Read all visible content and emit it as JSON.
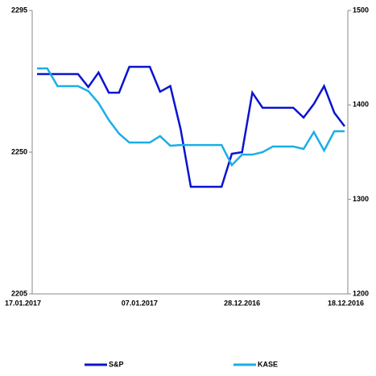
{
  "chart_data": {
    "type": "line",
    "categories": [
      "17.01.2017",
      null,
      null,
      null,
      null,
      null,
      null,
      null,
      null,
      null,
      "07.01.2017",
      null,
      null,
      null,
      null,
      null,
      null,
      null,
      null,
      null,
      "28.12.2016",
      null,
      null,
      null,
      null,
      null,
      null,
      null,
      null,
      null,
      "18.12.2016"
    ],
    "series": [
      {
        "name": "S&P",
        "color": "#0a14d0",
        "values": [
          2274.8,
          2274.8,
          2274.8,
          2274.8,
          2274.8,
          2270.7,
          2275.3,
          2268.9,
          2268.9,
          2277.1,
          2277.1,
          2277.1,
          2269.2,
          2271.0,
          2257.4,
          2239.0,
          2239.0,
          2239.0,
          2239.0,
          2249.5,
          2250.0,
          2268.9,
          2264.1,
          2264.1,
          2264.1,
          2264.1,
          2261.0,
          2265.3,
          2271.0,
          2262.5,
          2258.2
        ]
      },
      {
        "name": "KASE",
        "color": "#1aaee6",
        "axis": "y2",
        "values": [
          1438.6,
          1438.6,
          1419.9,
          1419.9,
          1419.9,
          1414.7,
          1402.0,
          1384.1,
          1369.6,
          1360.2,
          1360.2,
          1360.2,
          1367.0,
          1356.8,
          1357.6,
          1357.6,
          1357.6,
          1357.6,
          1357.6,
          1336.3,
          1347.4,
          1347.4,
          1350.0,
          1356.0,
          1356.0,
          1356.0,
          1353.4,
          1371.3,
          1351.7,
          1372.2,
          1372.2
        ]
      }
    ],
    "ylim": [
      2205,
      2295
    ],
    "yticks": [
      2205,
      2250,
      2295
    ],
    "y2lim": [
      1200,
      1500
    ],
    "y2ticks": [
      1200,
      1300,
      1400,
      1500
    ],
    "legend": "bottom"
  }
}
